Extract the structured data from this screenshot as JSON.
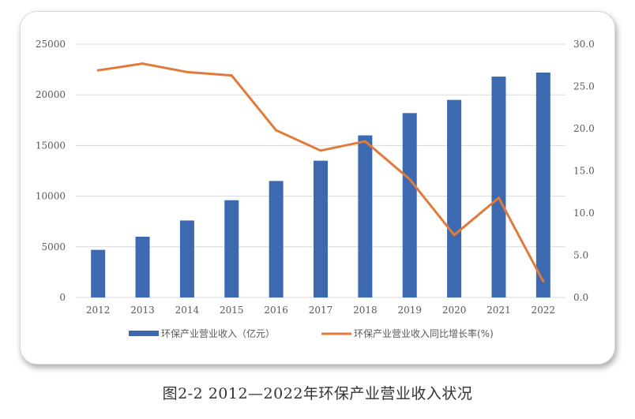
{
  "caption": "图2-2 2012—2022年环保产业营业收入状况",
  "chart_data": {
    "type": "bar",
    "categories": [
      "2012",
      "2013",
      "2014",
      "2015",
      "2016",
      "2017",
      "2018",
      "2019",
      "2020",
      "2021",
      "2022"
    ],
    "series": [
      {
        "name": "环保产业营业收入（亿元）",
        "type": "bar",
        "axis": "left",
        "color": "#3d69b0",
        "values": [
          4700,
          6000,
          7600,
          9600,
          11500,
          13500,
          16000,
          18200,
          19500,
          21800,
          22200
        ]
      },
      {
        "name": "环保产业营业收入同比增长率(%)",
        "type": "line",
        "axis": "right",
        "color": "#e07b3c",
        "values": [
          26.9,
          27.7,
          26.7,
          26.3,
          19.8,
          17.4,
          18.5,
          14.0,
          7.4,
          11.8,
          1.9
        ]
      }
    ],
    "y_left": {
      "min": 0,
      "max": 25000,
      "ticks": [
        "0",
        "5000",
        "10000",
        "15000",
        "20000",
        "25000"
      ]
    },
    "y_right": {
      "min": 0,
      "max": 30,
      "ticks": [
        "0.0",
        "5.0",
        "10.0",
        "15.0",
        "20.0",
        "25.0",
        "30.0"
      ]
    },
    "grid": true,
    "legend_position": "bottom"
  }
}
